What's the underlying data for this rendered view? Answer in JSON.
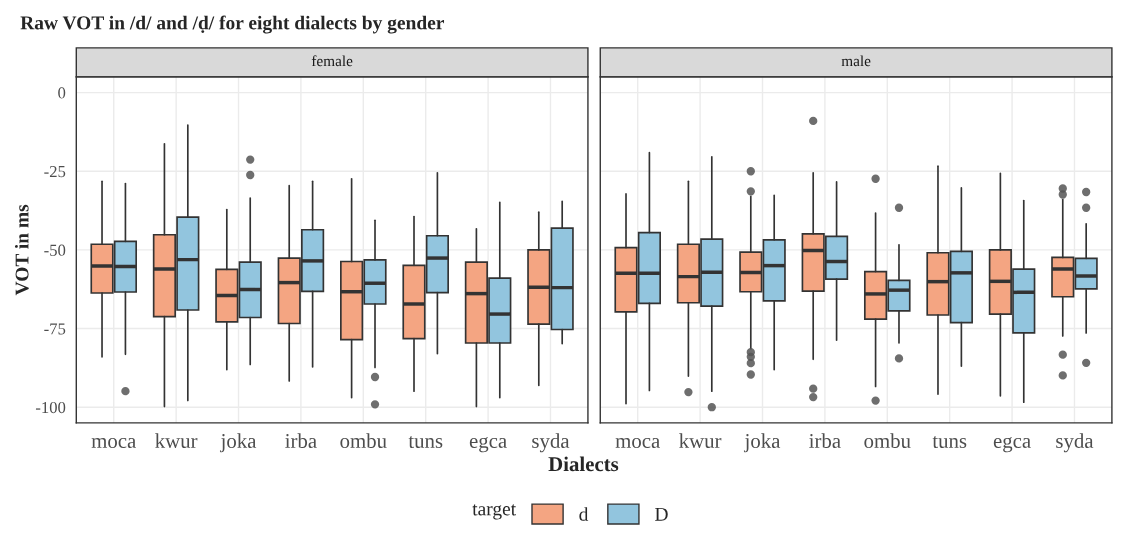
{
  "chart_data": [
    {
      "type": "box",
      "title": "Raw VOT in /d/ and /ḍ/ for eight dialects by gender",
      "subtitle": "female",
      "xlabel": "Dialects",
      "ylabel": "VOT in ms",
      "legend_title": "target",
      "legend": "bottom",
      "grid": true,
      "categories": [
        "moca",
        "kwur",
        "joka",
        "irba",
        "ombu",
        "tuns",
        "egca",
        "syda"
      ],
      "ylim": [
        -105,
        5
      ],
      "yticks": [
        0,
        -25,
        -50,
        -75,
        -100
      ],
      "series": [
        {
          "name": "d",
          "color": "#f4a582",
          "boxes": [
            {
              "low": -84,
              "q1": -63.7,
              "median": -55.1,
              "q3": -48.2,
              "high": -28.2
            },
            {
              "low": -99.8,
              "q1": -71.2,
              "median": -56.1,
              "q3": -45.2,
              "high": -16.3
            },
            {
              "low": -88.1,
              "q1": -72.9,
              "median": -64.5,
              "q3": -56.2,
              "high": -37.2
            },
            {
              "low": -91.7,
              "q1": -73.4,
              "median": -60.4,
              "q3": -52.6,
              "high": -29.6
            },
            {
              "low": -97,
              "q1": -78.5,
              "median": -63.3,
              "q3": -53.7,
              "high": -27.4
            },
            {
              "low": -94.9,
              "q1": -78.2,
              "median": -67.2,
              "q3": -54.9,
              "high": -39.4
            },
            {
              "low": -99.8,
              "q1": -79.6,
              "median": -63.9,
              "q3": -53.9,
              "high": -43.3
            },
            {
              "low": -93.1,
              "q1": -73.6,
              "median": -61.9,
              "q3": -50,
              "high": -38
            }
          ]
        },
        {
          "name": "D",
          "color": "#92c5de",
          "boxes": [
            {
              "low": -83.2,
              "q1": -63.4,
              "median": -55.3,
              "q3": -47.3,
              "high": -28.9,
              "outliers": [
                -94.9
              ]
            },
            {
              "low": -97.9,
              "q1": -69.1,
              "median": -53.1,
              "q3": -39.6,
              "high": -10.3
            },
            {
              "low": -86.4,
              "q1": -71.5,
              "median": -62.6,
              "q3": -53.9,
              "high": -33.5,
              "outliers": [
                -21.3,
                -26.2
              ]
            },
            {
              "low": -87.2,
              "q1": -63.2,
              "median": -53.5,
              "q3": -43.6,
              "high": -28.2
            },
            {
              "low": -87.4,
              "q1": -67.2,
              "median": -60.6,
              "q3": -53.2,
              "high": -40.6,
              "outliers": [
                -90.4,
                -99.1
              ]
            },
            {
              "low": -83,
              "q1": -63.6,
              "median": -52.6,
              "q3": -45.5,
              "high": -25.5
            },
            {
              "low": -97,
              "q1": -79.6,
              "median": -70.4,
              "q3": -59,
              "high": -34.9
            },
            {
              "low": -79.8,
              "q1": -75.3,
              "median": -62,
              "q3": -43.1,
              "high": -34.6
            }
          ]
        }
      ]
    },
    {
      "type": "box",
      "subtitle": "male",
      "grid": true,
      "tick_labels": "x",
      "categories": [
        "moca",
        "kwur",
        "joka",
        "irba",
        "ombu",
        "tuns",
        "egca",
        "syda"
      ],
      "ylim": [
        -105,
        5
      ],
      "yticks": [
        0,
        -25,
        -50,
        -75,
        -100
      ],
      "series": [
        {
          "color": "#f4a582",
          "boxes": [
            {
              "low": -98.9,
              "q1": -69.7,
              "median": -57.4,
              "q3": -49.3,
              "high": -32.2
            },
            {
              "low": -90.1,
              "q1": -66.8,
              "median": -58.5,
              "q3": -48.2,
              "high": -28.2,
              "outliers": [
                -95.2
              ]
            },
            {
              "low": -81.4,
              "q1": -63.3,
              "median": -57.2,
              "q3": -50.7,
              "high": -33,
              "outliers": [
                -25,
                -31.4,
                -82.5,
                -84,
                -86,
                -89.6
              ]
            },
            {
              "low": -84.8,
              "q1": -63.1,
              "median": -50.2,
              "q3": -44.9,
              "high": -25.5,
              "outliers": [
                -9,
                -94.1,
                -96.8
              ]
            },
            {
              "low": -93.4,
              "q1": -72,
              "median": -64,
              "q3": -56.9,
              "high": -38.3,
              "outliers": [
                -27.4,
                -97.9
              ]
            },
            {
              "low": -95.9,
              "q1": -70.7,
              "median": -60.1,
              "q3": -50.9,
              "high": -23.4
            },
            {
              "low": -96.4,
              "q1": -70.4,
              "median": -60,
              "q3": -50,
              "high": -25.7
            },
            {
              "low": -77.4,
              "q1": -64.9,
              "median": -56.1,
              "q3": -52.4,
              "high": -34,
              "outliers": [
                -30.5,
                -32.4,
                -83.3,
                -89.9
              ]
            }
          ]
        },
        {
          "color": "#92c5de",
          "boxes": [
            {
              "low": -94.7,
              "q1": -67,
              "median": -57.4,
              "q3": -44.5,
              "high": -19.1
            },
            {
              "low": -94.9,
              "q1": -67.9,
              "median": -57.1,
              "q3": -46.6,
              "high": -20.4,
              "outliers": [
                -100
              ]
            },
            {
              "low": -88.1,
              "q1": -66.2,
              "median": -55,
              "q3": -46.8,
              "high": -32.7
            },
            {
              "low": -78.7,
              "q1": -59.3,
              "median": -53.7,
              "q3": -45.7,
              "high": -28.4
            },
            {
              "low": -79.6,
              "q1": -69.4,
              "median": -62.8,
              "q3": -59.7,
              "high": -48.4,
              "outliers": [
                -36.6,
                -84.5
              ]
            },
            {
              "low": -87,
              "q1": -73.1,
              "median": -57.3,
              "q3": -50.5,
              "high": -30.3
            },
            {
              "low": -98.4,
              "q1": -76.4,
              "median": -63.5,
              "q3": -56.1,
              "high": -34.3
            },
            {
              "low": -76.4,
              "q1": -62.4,
              "median": -58.3,
              "q3": -52.7,
              "high": -41.7,
              "outliers": [
                -31.6,
                -36.6,
                -85.9
              ]
            }
          ]
        }
      ]
    }
  ]
}
